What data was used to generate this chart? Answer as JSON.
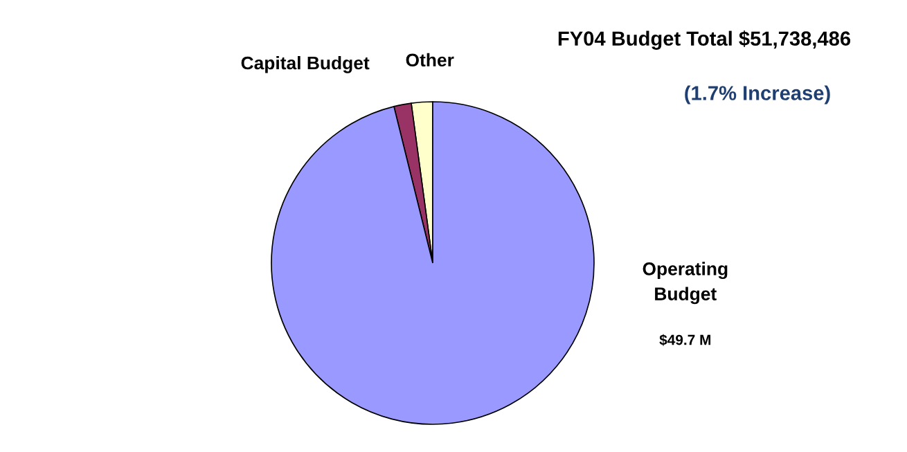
{
  "chart_data": {
    "type": "pie",
    "title": "FY04 Budget Total $51,738,486",
    "subtitle": "(1.7% Increase)",
    "categories": [
      "Other",
      "Capital Budget",
      "Operating\nBudget"
    ],
    "values": [
      1.1,
      0.9,
      49.7
    ],
    "colors": [
      "#ffffcc",
      "#993366",
      "#9999ff"
    ],
    "value_labels": [
      null,
      null,
      "$49.7 M"
    ]
  }
}
